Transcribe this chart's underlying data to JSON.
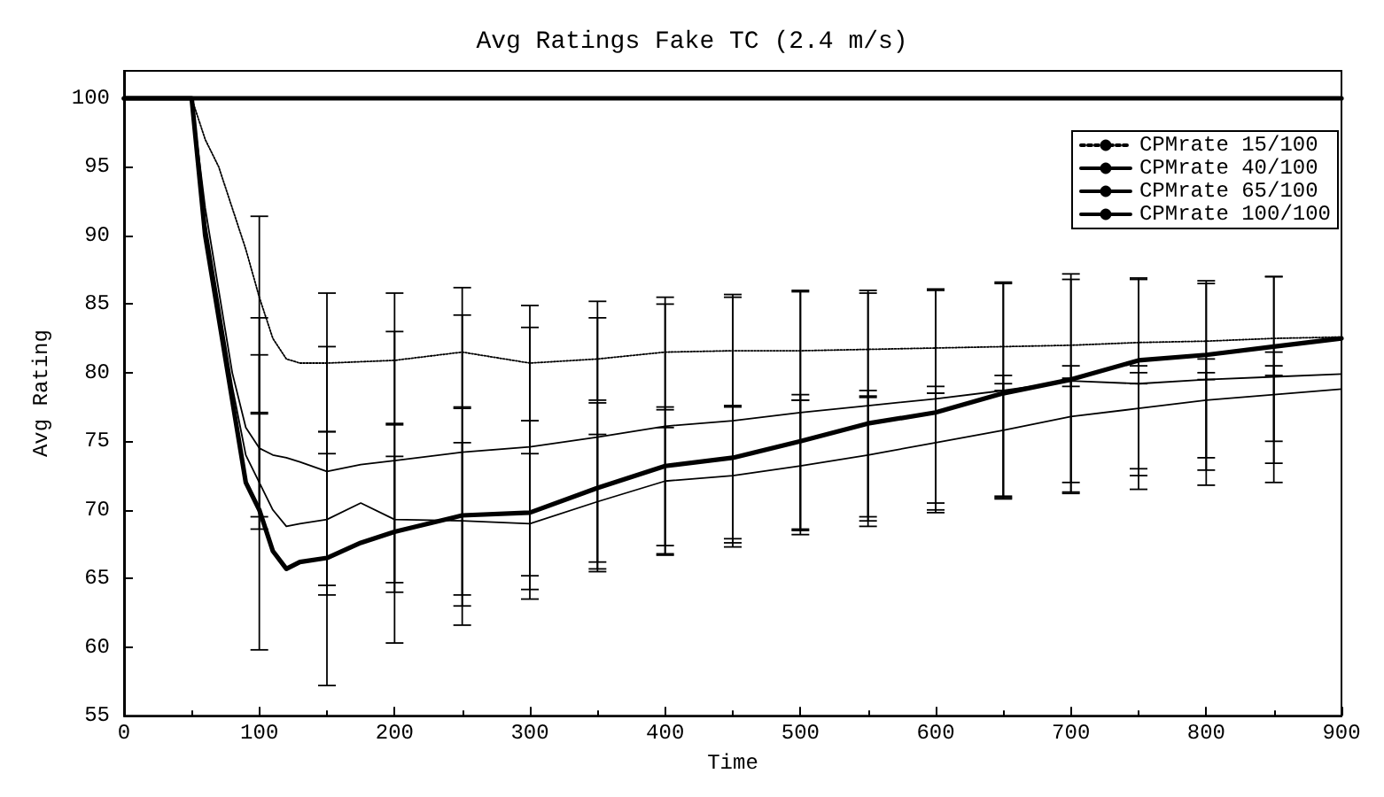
{
  "chart_data": {
    "type": "line",
    "title": "Avg Ratings Fake TC (2.4 m/s)",
    "xlabel": "Time",
    "ylabel": "Avg Rating",
    "xlim": [
      0,
      900
    ],
    "xticks": [
      0,
      100,
      200,
      300,
      400,
      500,
      600,
      700,
      800,
      900
    ],
    "ylim": [
      55,
      102
    ],
    "yticks": [
      55,
      60,
      65,
      70,
      75,
      80,
      85,
      90,
      95,
      100
    ],
    "grid": false,
    "legend": "top right",
    "marker": "none",
    "series": [
      {
        "name": "CPMrate 15/100",
        "color": "#000000",
        "line_style": "dotted",
        "x": [
          0,
          50,
          60,
          70,
          80,
          90,
          100,
          110,
          120,
          130,
          150,
          175,
          200,
          250,
          300,
          350,
          400,
          450,
          500,
          550,
          600,
          650,
          700,
          750,
          800,
          850,
          900
        ],
        "values": [
          100,
          100,
          97,
          95,
          92,
          89,
          85.5,
          82.5,
          81,
          80.7,
          80.7,
          80.8,
          80.9,
          81.5,
          80.7,
          81,
          81.5,
          81.6,
          81.6,
          81.7,
          81.8,
          81.9,
          82,
          82.2,
          82.3,
          82.5,
          82.6
        ],
        "errors": [
          null,
          null,
          null,
          null,
          null,
          null,
          [
            77.1,
            84
          ],
          null,
          null,
          null,
          [
            75.7,
            81.9
          ],
          null,
          [
            76.2,
            83
          ],
          [
            77.4,
            84.2
          ],
          [
            76.5,
            83.3
          ],
          [
            78,
            84
          ],
          [
            77.3,
            85
          ],
          [
            77.5,
            85.5
          ],
          [
            78,
            86
          ],
          [
            78.3,
            85.8
          ],
          [
            78.5,
            86
          ],
          [
            78.7,
            86.5
          ],
          [
            79,
            86.8
          ],
          [
            79.2,
            86.8
          ],
          [
            79.5,
            86.5
          ],
          [
            79.8,
            87
          ],
          null
        ]
      },
      {
        "name": "CPMrate 40/100",
        "color": "#000000",
        "line_style": "solid",
        "x": [
          0,
          50,
          60,
          70,
          80,
          90,
          100,
          110,
          120,
          130,
          150,
          175,
          200,
          250,
          300,
          350,
          400,
          450,
          500,
          550,
          600,
          650,
          700,
          750,
          800,
          850,
          900
        ],
        "values": [
          100,
          100,
          92,
          86,
          80,
          76,
          74.5,
          74,
          73.8,
          73.5,
          72.8,
          73.3,
          73.6,
          74.2,
          74.6,
          75.3,
          76.1,
          76.5,
          77.1,
          77.6,
          78.1,
          78.7,
          79.4,
          79.2,
          79.5,
          79.7,
          79.9
        ],
        "errors": [
          null,
          null,
          null,
          null,
          null,
          null,
          [
            69.5,
            77
          ],
          null,
          null,
          null,
          [
            64.5,
            75.7
          ],
          null,
          [
            64.7,
            76.3
          ],
          [
            63.8,
            77.5
          ],
          [
            65.2,
            76.5
          ],
          [
            66.2,
            77.8
          ],
          [
            67.4,
            77.5
          ],
          [
            67.9,
            77.6
          ],
          [
            68.5,
            78.4
          ],
          [
            69.2,
            78.7
          ],
          [
            70,
            79
          ],
          [
            70.9,
            79.8
          ],
          [
            71.3,
            80.5
          ],
          [
            72.5,
            80.5
          ],
          [
            72.9,
            81
          ],
          [
            73.4,
            81.5
          ],
          null
        ]
      },
      {
        "name": "CPMrate 65/100",
        "color": "#000000",
        "line_style": "solid",
        "x": [
          0,
          50,
          60,
          70,
          80,
          90,
          100,
          110,
          120,
          130,
          150,
          175,
          200,
          250,
          300,
          350,
          400,
          450,
          500,
          550,
          600,
          650,
          700,
          750,
          800,
          850,
          900
        ],
        "values": [
          100,
          100,
          91,
          85,
          79,
          74,
          72,
          70,
          68.8,
          69,
          69.3,
          70.5,
          69.3,
          69.2,
          69,
          70.6,
          72.1,
          72.5,
          73.2,
          74,
          74.9,
          75.8,
          76.8,
          77.4,
          78,
          78.4,
          78.8
        ],
        "errors": [
          null,
          null,
          null,
          null,
          null,
          null,
          [
            68.6,
            81.3
          ],
          null,
          null,
          null,
          [
            63.8,
            74.1
          ],
          null,
          [
            64,
            73.9
          ],
          [
            63,
            74.9
          ],
          [
            64.2,
            74.1
          ],
          [
            65.7,
            75.5
          ],
          [
            66.8,
            76
          ],
          [
            67.6,
            77.6
          ],
          [
            68.6,
            78
          ],
          [
            69.5,
            78.2
          ],
          [
            70.5,
            78.5
          ],
          [
            71,
            79.2
          ],
          [
            72,
            79.6
          ],
          [
            73,
            80
          ],
          [
            73.8,
            80
          ],
          [
            75,
            80.5
          ],
          null
        ]
      },
      {
        "name": "CPMrate 100/100",
        "color": "#000000",
        "line_style": "solid",
        "x": [
          0,
          50,
          60,
          70,
          80,
          90,
          100,
          110,
          120,
          130,
          150,
          175,
          200,
          250,
          300,
          350,
          400,
          450,
          500,
          550,
          600,
          650,
          700,
          750,
          800,
          850,
          900
        ],
        "values": [
          100,
          100,
          90,
          84,
          78,
          72,
          70,
          67,
          65.7,
          66.2,
          66.5,
          67.6,
          68.4,
          69.6,
          69.8,
          71.6,
          73.2,
          73.8,
          75,
          76.3,
          77.1,
          78.5,
          79.5,
          80.9,
          81.3,
          81.9,
          82.5
        ],
        "errors": [
          null,
          null,
          null,
          null,
          null,
          null,
          [
            59.8,
            91.4
          ],
          null,
          null,
          null,
          [
            57.2,
            85.8
          ],
          null,
          [
            60.3,
            85.8
          ],
          [
            61.6,
            86.2
          ],
          [
            63.5,
            84.9
          ],
          [
            65.5,
            85.2
          ],
          [
            66.7,
            85.5
          ],
          [
            67.3,
            85.7
          ],
          [
            68.2,
            85.9
          ],
          [
            68.8,
            86
          ],
          [
            69.8,
            86.1
          ],
          [
            70.8,
            86.6
          ],
          [
            71.2,
            87.2
          ],
          [
            71.5,
            86.9
          ],
          [
            71.8,
            86.7
          ],
          [
            72,
            87
          ],
          null
        ]
      },
      {
        "color": "#000000",
        "line_style": "solid",
        "x": [
          0,
          900
        ],
        "values": [
          100,
          100
        ]
      }
    ]
  }
}
